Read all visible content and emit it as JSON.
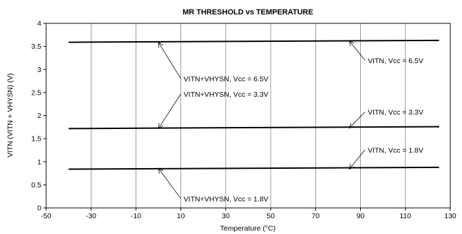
{
  "chart_data": {
    "type": "line",
    "title": "MR THRESHOLD vs TEMPERATURE",
    "xlabel": "Temperature (°C)",
    "ylabel": "VITN (VITN + VHYSN) (V)",
    "xlim": [
      -50,
      130
    ],
    "ylim": [
      0,
      4
    ],
    "xticks": [
      -50,
      -30,
      -10,
      10,
      30,
      50,
      70,
      90,
      110,
      130
    ],
    "yticks": [
      0,
      0.5,
      1,
      1.5,
      2,
      2.5,
      3,
      3.5,
      4
    ],
    "grid": {
      "x": true,
      "y": false
    },
    "series": [
      {
        "x": [
          -40,
          125
        ],
        "values": [
          3.59,
          3.63
        ],
        "color": "#000000"
      },
      {
        "x": [
          -40,
          125
        ],
        "values": [
          1.72,
          1.76
        ],
        "color": "#000000"
      },
      {
        "x": [
          -40,
          125
        ],
        "values": [
          0.84,
          0.88
        ],
        "color": "#000000"
      }
    ],
    "annotations": [
      {
        "text": "VITN+VHYSN, Vcc = 6.5V",
        "pos": [
          10,
          2.8
        ],
        "targets": [
          [
            0,
            3.59
          ]
        ]
      },
      {
        "text": "VITN+VHYSN, Vcc = 3.3V",
        "pos": [
          10,
          2.47
        ],
        "targets": [
          [
            0,
            1.72
          ]
        ]
      },
      {
        "text": "VITN, Vcc = 6.5V",
        "pos": [
          92,
          3.2
        ],
        "targets": [
          [
            85,
            3.62
          ]
        ]
      },
      {
        "text": "VITN, Vcc = 3.3V",
        "pos": [
          92,
          2.08
        ],
        "targets": [
          [
            85,
            1.73
          ]
        ]
      },
      {
        "text": "VITN, Vcc = 1.8V",
        "pos": [
          92,
          1.26
        ],
        "targets": [
          [
            85,
            0.84
          ]
        ]
      },
      {
        "text": "VITN+VHYSN, Vcc = 1.8V",
        "pos": [
          10,
          0.2
        ],
        "targets": [
          [
            0,
            0.86
          ]
        ]
      }
    ]
  }
}
